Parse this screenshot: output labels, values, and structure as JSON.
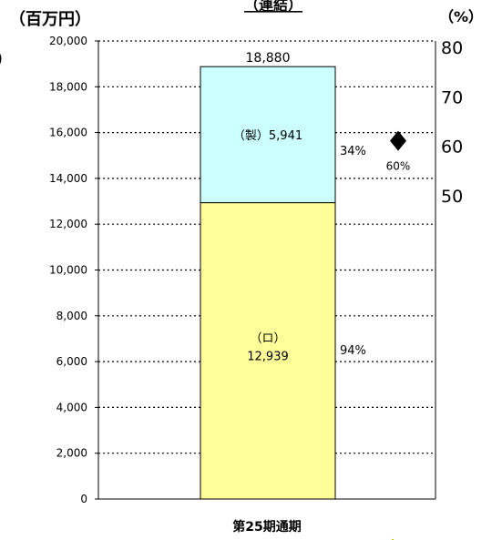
{
  "chart_data": {
    "type": "bar",
    "title": "（連結）",
    "left_unit": "（百万円）",
    "right_unit": "（%）",
    "categories": [
      "第25期通期"
    ],
    "ylim": [
      0,
      20000
    ],
    "yticks": [
      0,
      2000,
      4000,
      6000,
      8000,
      10000,
      12000,
      14000,
      16000,
      18000,
      20000
    ],
    "ytick_labels": [
      "0",
      "2,000",
      "4,000",
      "6,000",
      "8,000",
      "10,000",
      "12,000",
      "14,000",
      "16,000",
      "18,000",
      "20,000"
    ],
    "y2lim": [
      0,
      80
    ],
    "y2ticks": [
      50,
      60,
      70,
      80
    ],
    "y2tick_labels": [
      "50",
      "60",
      "70",
      "80"
    ],
    "grid": true,
    "series": [
      {
        "name": "（ロ）",
        "values": [
          12939
        ],
        "label": "（ロ）",
        "value_label": "12,939",
        "color": "#FFFF99"
      },
      {
        "name": "（製）",
        "values": [
          5941
        ],
        "label": "（製）5,941",
        "color": "#CCFFFF"
      }
    ],
    "total_label": "18,880",
    "side_labels": [
      "34%",
      "94%"
    ],
    "marker": {
      "value": 60,
      "label": "60%"
    }
  }
}
